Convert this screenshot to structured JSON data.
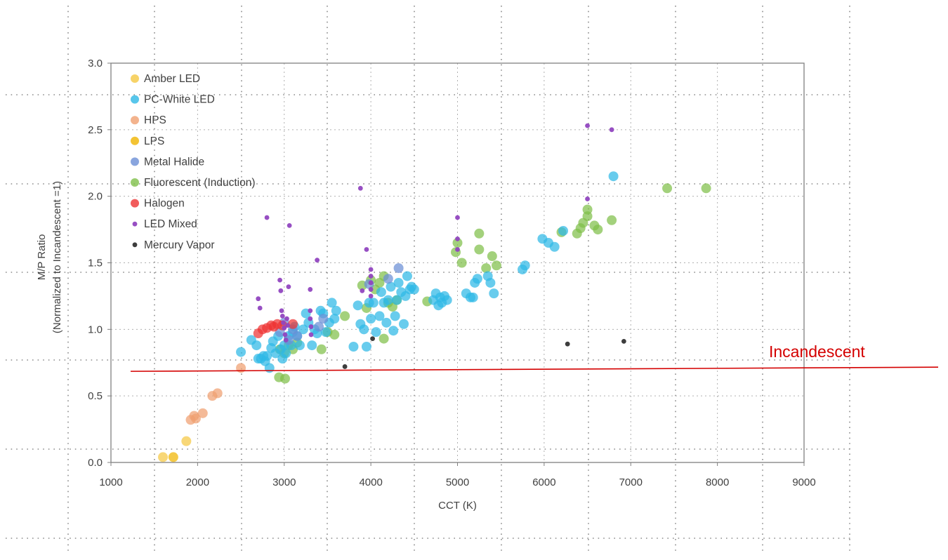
{
  "chart_data": {
    "type": "scatter",
    "title": "",
    "xlabel": "CCT (K)",
    "ylabel_line1": "M/P Ratio",
    "ylabel_line2": "(Normalized to Incandescent =1)",
    "xlim": [
      1000,
      9000
    ],
    "ylim": [
      0.0,
      3.0
    ],
    "x_ticks": [
      "1000",
      "2000",
      "3000",
      "4000",
      "5000",
      "6000",
      "7000",
      "8000",
      "9000"
    ],
    "y_ticks": [
      "0.0",
      "0.5",
      "1.0",
      "1.5",
      "2.0",
      "2.5",
      "3.0"
    ],
    "grid": "dotted",
    "legend_position": "top-left",
    "annotation": {
      "text": "Incandescent",
      "line_y_start": 0.69,
      "line_y_end": 0.7,
      "color": "#d40000"
    },
    "series": [
      {
        "name": "Amber LED",
        "color": "#f5c842",
        "size": "large",
        "points": [
          [
            1600,
            0.04
          ],
          [
            1870,
            0.16
          ]
        ]
      },
      {
        "name": "PC-White LED",
        "color": "#2eb8e6",
        "size": "large",
        "points": [
          [
            2500,
            0.83
          ],
          [
            2620,
            0.92
          ],
          [
            2680,
            0.88
          ],
          [
            2700,
            0.78
          ],
          [
            2730,
            0.78
          ],
          [
            2760,
            0.8
          ],
          [
            2780,
            0.76
          ],
          [
            2800,
            0.8
          ],
          [
            2830,
            0.71
          ],
          [
            2850,
            0.86
          ],
          [
            2870,
            0.91
          ],
          [
            2900,
            0.82
          ],
          [
            2930,
            0.95
          ],
          [
            2960,
            0.85
          ],
          [
            2980,
            0.78
          ],
          [
            3000,
            0.88
          ],
          [
            3020,
            0.82
          ],
          [
            3050,
            0.95
          ],
          [
            3080,
            0.88
          ],
          [
            3100,
            0.98
          ],
          [
            3120,
            1.02
          ],
          [
            3150,
            0.95
          ],
          [
            3180,
            0.88
          ],
          [
            3220,
            1.0
          ],
          [
            3250,
            1.12
          ],
          [
            3280,
            1.05
          ],
          [
            3320,
            0.88
          ],
          [
            3350,
            1.0
          ],
          [
            3380,
            0.97
          ],
          [
            3420,
            1.14
          ],
          [
            3450,
            1.12
          ],
          [
            3480,
            0.98
          ],
          [
            3520,
            1.05
          ],
          [
            3550,
            1.2
          ],
          [
            3580,
            1.08
          ],
          [
            3600,
            1.14
          ],
          [
            3800,
            0.87
          ],
          [
            3850,
            1.18
          ],
          [
            3880,
            1.04
          ],
          [
            3920,
            1.0
          ],
          [
            3950,
            0.87
          ],
          [
            3980,
            1.2
          ],
          [
            4000,
            1.08
          ],
          [
            4030,
            1.2
          ],
          [
            4060,
            0.98
          ],
          [
            4100,
            1.1
          ],
          [
            4120,
            1.28
          ],
          [
            4150,
            1.2
          ],
          [
            4180,
            1.05
          ],
          [
            4200,
            1.22
          ],
          [
            4230,
            1.32
          ],
          [
            4260,
            0.99
          ],
          [
            4280,
            1.1
          ],
          [
            4300,
            1.22
          ],
          [
            4320,
            1.35
          ],
          [
            4350,
            1.28
          ],
          [
            4380,
            1.04
          ],
          [
            4400,
            1.25
          ],
          [
            4420,
            1.4
          ],
          [
            4450,
            1.3
          ],
          [
            4470,
            1.32
          ],
          [
            4500,
            1.3
          ],
          [
            4720,
            1.22
          ],
          [
            4750,
            1.27
          ],
          [
            4780,
            1.18
          ],
          [
            4800,
            1.24
          ],
          [
            4820,
            1.2
          ],
          [
            4850,
            1.25
          ],
          [
            4880,
            1.22
          ],
          [
            5100,
            1.27
          ],
          [
            5150,
            1.24
          ],
          [
            5180,
            1.24
          ],
          [
            5200,
            1.35
          ],
          [
            5230,
            1.38
          ],
          [
            5350,
            1.4
          ],
          [
            5380,
            1.35
          ],
          [
            5420,
            1.27
          ],
          [
            5750,
            1.45
          ],
          [
            5780,
            1.48
          ],
          [
            5980,
            1.68
          ],
          [
            6050,
            1.65
          ],
          [
            6120,
            1.62
          ],
          [
            6220,
            1.74
          ],
          [
            6800,
            2.15
          ]
        ]
      },
      {
        "name": "HPS",
        "color": "#f0a070",
        "size": "large",
        "points": [
          [
            1920,
            0.32
          ],
          [
            1960,
            0.35
          ],
          [
            1980,
            0.33
          ],
          [
            2060,
            0.37
          ],
          [
            2170,
            0.5
          ],
          [
            2230,
            0.52
          ],
          [
            2500,
            0.71
          ]
        ]
      },
      {
        "name": "LPS",
        "color": "#f0b400",
        "size": "large",
        "points": [
          [
            1720,
            0.04
          ]
        ]
      },
      {
        "name": "Metal Halide",
        "color": "#6b8fd6",
        "size": "large",
        "points": [
          [
            2950,
            0.98
          ],
          [
            3000,
            1.05
          ],
          [
            3050,
            0.92
          ],
          [
            3100,
            1.0
          ],
          [
            3150,
            0.95
          ],
          [
            3400,
            1.02
          ],
          [
            3450,
            1.08
          ],
          [
            3980,
            1.34
          ],
          [
            4200,
            1.38
          ],
          [
            4320,
            1.46
          ]
        ]
      },
      {
        "name": "Fluorescent (Induction)",
        "color": "#7fbf4a",
        "size": "large",
        "points": [
          [
            2940,
            0.64
          ],
          [
            3010,
            0.63
          ],
          [
            2950,
            0.85
          ],
          [
            3000,
            0.82
          ],
          [
            3050,
            0.88
          ],
          [
            3100,
            0.85
          ],
          [
            3150,
            0.9
          ],
          [
            3430,
            0.85
          ],
          [
            3500,
            0.98
          ],
          [
            3580,
            0.96
          ],
          [
            3700,
            1.1
          ],
          [
            3900,
            1.33
          ],
          [
            3950,
            1.16
          ],
          [
            4000,
            1.37
          ],
          [
            4050,
            1.3
          ],
          [
            4100,
            1.35
          ],
          [
            4150,
            1.4
          ],
          [
            4150,
            0.93
          ],
          [
            4200,
            1.2
          ],
          [
            4250,
            1.17
          ],
          [
            4300,
            1.22
          ],
          [
            4650,
            1.21
          ],
          [
            4980,
            1.58
          ],
          [
            5000,
            1.65
          ],
          [
            5050,
            1.5
          ],
          [
            5250,
            1.72
          ],
          [
            5250,
            1.6
          ],
          [
            5330,
            1.46
          ],
          [
            5400,
            1.55
          ],
          [
            5450,
            1.48
          ],
          [
            6200,
            1.73
          ],
          [
            6380,
            1.72
          ],
          [
            6420,
            1.76
          ],
          [
            6450,
            1.8
          ],
          [
            6500,
            1.9
          ],
          [
            6500,
            1.85
          ],
          [
            6580,
            1.78
          ],
          [
            6620,
            1.75
          ],
          [
            6780,
            1.82
          ],
          [
            7420,
            2.06
          ],
          [
            7870,
            2.06
          ]
        ]
      },
      {
        "name": "Halogen",
        "color": "#ee3333",
        "size": "large",
        "points": [
          [
            2700,
            0.97
          ],
          [
            2750,
            1.0
          ],
          [
            2800,
            1.01
          ],
          [
            2850,
            1.03
          ],
          [
            2880,
            1.02
          ],
          [
            2920,
            1.04
          ],
          [
            2980,
            1.03
          ],
          [
            3100,
            1.04
          ]
        ]
      },
      {
        "name": "LED Mixed",
        "color": "#9146c0",
        "size": "small",
        "points": [
          [
            2700,
            1.23
          ],
          [
            2720,
            1.16
          ],
          [
            2800,
            1.84
          ],
          [
            2950,
            1.37
          ],
          [
            2960,
            1.29
          ],
          [
            2970,
            1.14
          ],
          [
            2980,
            1.1
          ],
          [
            2990,
            1.05
          ],
          [
            3000,
            1.01
          ],
          [
            3010,
            0.96
          ],
          [
            3020,
            0.92
          ],
          [
            3030,
            1.08
          ],
          [
            3040,
            1.03
          ],
          [
            3050,
            1.32
          ],
          [
            3060,
            1.78
          ],
          [
            3300,
            1.3
          ],
          [
            3300,
            1.14
          ],
          [
            3300,
            1.08
          ],
          [
            3310,
            1.02
          ],
          [
            3310,
            0.96
          ],
          [
            3380,
            1.52
          ],
          [
            3880,
            2.06
          ],
          [
            3900,
            1.29
          ],
          [
            3950,
            1.6
          ],
          [
            4000,
            1.45
          ],
          [
            4000,
            1.4
          ],
          [
            4000,
            1.35
          ],
          [
            4000,
            1.3
          ],
          [
            4000,
            1.25
          ],
          [
            5000,
            1.84
          ],
          [
            5000,
            1.68
          ],
          [
            5000,
            1.6
          ],
          [
            6500,
            2.53
          ],
          [
            6500,
            1.98
          ],
          [
            6780,
            2.5
          ]
        ]
      },
      {
        "name": "Mercury Vapor",
        "color": "#333333",
        "size": "small",
        "points": [
          [
            3700,
            0.72
          ],
          [
            4020,
            0.93
          ],
          [
            6270,
            0.89
          ],
          [
            6920,
            0.91
          ]
        ]
      }
    ]
  }
}
